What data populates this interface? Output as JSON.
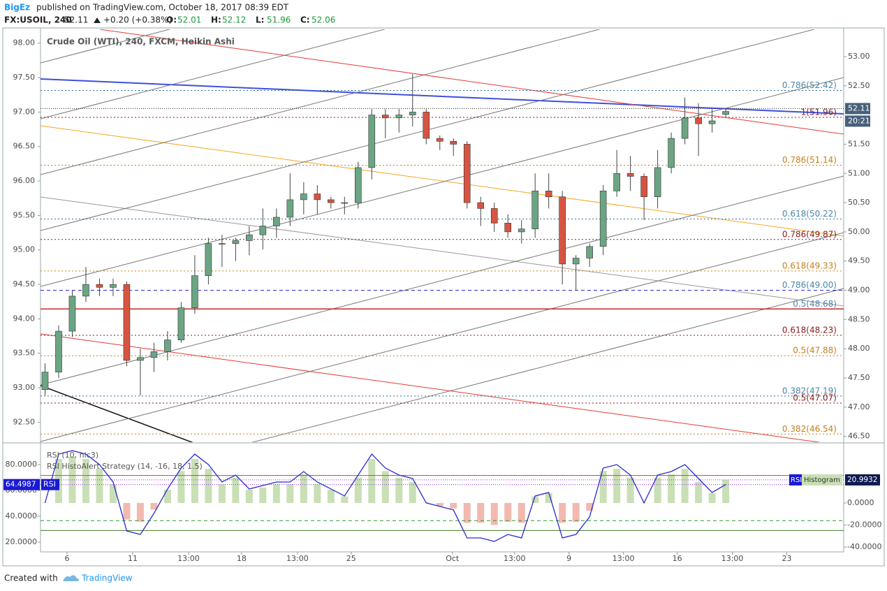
{
  "header": {
    "author": "BigEz",
    "published": "published on TradingView.com, October 18, 2017 08:39 EDT",
    "symbol": "FX:USOIL, 240",
    "last": "52.11",
    "change": "+0.20 (+0.38%)",
    "ohlc": [
      {
        "label": "O:",
        "value": "52.01"
      },
      {
        "label": "H:",
        "value": "52.12"
      },
      {
        "label": "L:",
        "value": "51.96"
      },
      {
        "label": "C:",
        "value": "52.06"
      }
    ]
  },
  "footer": {
    "text": "Created with",
    "brand": "TradingView"
  },
  "chart_data": [
    {
      "type": "candlestick",
      "title": "Crude Oil (WTI), 240, FXCM, Heikin Ashi",
      "axis": "y2",
      "up_color": "#6ba583",
      "down_color": "#d75442",
      "x": [
        1,
        4,
        7,
        10,
        13,
        16,
        19,
        22,
        25,
        28,
        31,
        34,
        37,
        40,
        43,
        46,
        49,
        52,
        55,
        58,
        61,
        64,
        67,
        70,
        73,
        76,
        79,
        82,
        85,
        88,
        91,
        94,
        97,
        100,
        103,
        106,
        109,
        112,
        115,
        118,
        121,
        124,
        127,
        130,
        133,
        136,
        139,
        142,
        145,
        148,
        151
      ],
      "open": [
        47.3,
        47.6,
        48.3,
        48.9,
        49.1,
        49.05,
        49.1,
        47.8,
        47.85,
        47.95,
        48.15,
        48.7,
        49.25,
        49.8,
        49.8,
        49.85,
        49.95,
        50.1,
        50.25,
        50.55,
        50.65,
        50.55,
        50.5,
        50.5,
        51.1,
        52.0,
        51.95,
        52.0,
        52.05,
        51.6,
        51.55,
        51.5,
        50.5,
        50.4,
        50.15,
        50.0,
        50.05,
        50.7,
        50.6,
        49.45,
        49.55,
        49.75,
        50.7,
        51.0,
        50.95,
        50.6,
        51.1,
        51.6,
        51.95,
        51.85,
        52.01
      ],
      "high": [
        47.75,
        48.4,
        49.0,
        49.4,
        49.2,
        49.2,
        49.15,
        48.0,
        48.1,
        48.3,
        48.8,
        49.6,
        49.9,
        49.95,
        49.9,
        50.1,
        50.4,
        50.4,
        51.0,
        50.85,
        50.8,
        50.6,
        50.6,
        51.2,
        52.1,
        52.1,
        52.1,
        52.7,
        52.1,
        51.65,
        51.6,
        51.55,
        50.6,
        50.5,
        50.3,
        50.2,
        51.0,
        51.0,
        50.7,
        49.6,
        49.8,
        50.8,
        51.4,
        51.3,
        51.0,
        51.4,
        51.7,
        52.3,
        52.2,
        52.1,
        52.12
      ],
      "low": [
        47.2,
        47.5,
        48.2,
        48.8,
        48.9,
        48.9,
        47.7,
        47.2,
        47.6,
        47.8,
        48.1,
        48.6,
        49.1,
        49.4,
        49.5,
        49.6,
        49.7,
        49.9,
        50.1,
        50.3,
        50.3,
        50.4,
        50.3,
        50.4,
        50.9,
        51.6,
        51.7,
        51.8,
        51.5,
        51.4,
        51.3,
        50.4,
        50.1,
        50.0,
        49.9,
        49.8,
        49.9,
        50.4,
        49.1,
        49.0,
        49.4,
        49.6,
        50.6,
        50.7,
        50.2,
        50.4,
        51.0,
        51.5,
        51.3,
        51.7,
        51.96
      ],
      "close": [
        47.6,
        48.3,
        48.9,
        49.1,
        49.05,
        49.1,
        47.8,
        47.85,
        47.95,
        48.15,
        48.7,
        49.25,
        49.8,
        49.8,
        49.85,
        49.95,
        50.1,
        50.25,
        50.55,
        50.65,
        50.55,
        50.5,
        50.5,
        51.1,
        52.0,
        51.95,
        52.0,
        52.05,
        51.6,
        51.55,
        51.5,
        50.5,
        50.4,
        50.15,
        50.0,
        50.05,
        50.7,
        50.6,
        49.45,
        49.55,
        49.75,
        50.7,
        51.0,
        50.95,
        50.6,
        51.1,
        51.6,
        51.95,
        51.85,
        51.9,
        52.06
      ],
      "xlim": [
        0,
        177
      ],
      "xticks": [
        {
          "value": 5.85,
          "label": "6"
        },
        {
          "value": 20.31,
          "label": "11"
        },
        {
          "value": 32.62,
          "label": "13:00"
        },
        {
          "value": 44.31,
          "label": "18"
        },
        {
          "value": 56.62,
          "label": "13:00"
        },
        {
          "value": 68.46,
          "label": "25"
        },
        {
          "value": 90.77,
          "label": "Oct"
        },
        {
          "value": 104.46,
          "label": "13:00"
        },
        {
          "value": 116.46,
          "label": "9"
        },
        {
          "value": 128.46,
          "label": "13:00"
        },
        {
          "value": 140.31,
          "label": "16"
        },
        {
          "value": 152.46,
          "label": "13:00"
        },
        {
          "value": 164.46,
          "label": "23"
        }
      ],
      "ylim": [
        92.21,
        98.2
      ],
      "yticks": [
        {
          "value": 98,
          "label": "98.00"
        },
        {
          "value": 97.5,
          "label": "97.50"
        },
        {
          "value": 97,
          "label": "97.00"
        },
        {
          "value": 96.5,
          "label": "96.50"
        },
        {
          "value": 96,
          "label": "96.00"
        },
        {
          "value": 95.5,
          "label": "95.50"
        },
        {
          "value": 95,
          "label": "95.00"
        },
        {
          "value": 94.5,
          "label": "94.50"
        },
        {
          "value": 94,
          "label": "94.00"
        },
        {
          "value": 93.5,
          "label": "93.50"
        },
        {
          "value": 93,
          "label": "93.00"
        },
        {
          "value": 92.5,
          "label": "92.50"
        }
      ],
      "y2lim": [
        46.4,
        53.466
      ],
      "y2ticks": [
        {
          "value": 53,
          "label": "53.00"
        },
        {
          "value": 52.5,
          "label": "52.50"
        },
        {
          "value": 51.5,
          "label": "51.50"
        },
        {
          "value": 51,
          "label": "51.00"
        },
        {
          "value": 50.5,
          "label": "50.50"
        },
        {
          "value": 50,
          "label": "50.00"
        },
        {
          "value": 49.5,
          "label": "49.50"
        },
        {
          "value": 49,
          "label": "49.00"
        },
        {
          "value": 48.5,
          "label": "48.50"
        },
        {
          "value": 48,
          "label": "48.00"
        },
        {
          "value": 47.5,
          "label": "47.50"
        },
        {
          "value": 47,
          "label": "47.00"
        },
        {
          "value": 46.5,
          "label": "46.50"
        }
      ],
      "levels": [
        {
          "label": "0.786(52.42)",
          "value": 52.42,
          "color": "#4a86a8",
          "line_color": "#2f6f9f",
          "style": "dotted"
        },
        {
          "label": "1(51.96)",
          "value": 51.96,
          "color": "#8b1a1a",
          "line_color": "#8b1a1a",
          "style": "dotted"
        },
        {
          "label": "0.786(51.14)",
          "value": 51.14,
          "color": "#c77f19",
          "line_color": "#c77f19",
          "style": "dotted"
        },
        {
          "label": "0.618(50.22)",
          "value": 50.22,
          "color": "#4a86a8",
          "line_color": "#2f6f9f",
          "style": "dotted"
        },
        {
          "label": "0.786(49.87)",
          "value": 49.87,
          "color": "#8b1a1a",
          "line_color": "#8b1a1a",
          "style": "dotted"
        },
        {
          "label": "0.618(49.33)",
          "value": 49.33,
          "color": "#c77f19",
          "line_color": "#c77f19",
          "style": "dotted"
        },
        {
          "label": "0.786(49.00)",
          "value": 49.0,
          "color": "#4a86a8",
          "line_color": "#2b2bd4",
          "style": "dashed"
        },
        {
          "label": "0.5(48.68)",
          "value": 48.68,
          "color": "#4a86a8",
          "line_color": "#c62828",
          "style": "solid"
        },
        {
          "label": "0.618(48.23)",
          "value": 48.23,
          "color": "#8b1a1a",
          "line_color": "#8b1a1a",
          "style": "dotted"
        },
        {
          "label": "0.5(47.88)",
          "value": 47.88,
          "color": "#c77f19",
          "line_color": "#c77f19",
          "style": "dotted"
        },
        {
          "label": "0.382(47.19)",
          "value": 47.19,
          "color": "#4a86a8",
          "line_color": "#2f6f9f",
          "style": "dotted"
        },
        {
          "label": "0.5(47.07)",
          "value": 47.07,
          "color": "#8b1a1a",
          "line_color": "#8b1a1a",
          "style": "dotted"
        },
        {
          "label": "0.382(46.54)",
          "value": 46.54,
          "color": "#c77f19",
          "line_color": "#c77f19",
          "style": "dotted"
        }
      ],
      "price_tag": {
        "label": "52.11",
        "value": 52.11,
        "color": "#48607a",
        "time": "20:21"
      }
    },
    {
      "type": "rsi",
      "title": "RSI (10, hlc3)",
      "subtitle": "RSI HistoAlert Strategy (14, -16, 18, 1.5)",
      "series": [
        {
          "name": "RSI",
          "color": "#2a2ad0",
          "values": [
            50.3,
            88.1,
            90.8,
            88.1,
            80,
            66.5,
            28.6,
            25.9,
            42.2,
            61.1,
            77.3,
            88.1,
            80,
            66.5,
            71.9,
            61.1,
            63.8,
            66.5,
            66.5,
            74.6,
            66.5,
            61.1,
            55.7,
            71.9,
            88.1,
            77.3,
            71.9,
            69.2,
            50.3,
            47.6,
            44.9,
            23.2,
            23.2,
            20.5,
            25.9,
            23.2,
            55.7,
            58.4,
            23.2,
            25.9,
            39.5,
            77.3,
            80,
            71.9,
            50.3,
            71.9,
            74.6,
            80,
            69.2,
            58.4,
            64.4987
          ]
        },
        {
          "name": "Histogram",
          "axis": "y2",
          "color": "#c9dfb5",
          "negative_color": "#f2b9b0",
          "values": [
            0.3,
            40,
            42,
            40,
            31,
            17,
            -15,
            -17,
            -6,
            12,
            29,
            40,
            31,
            17,
            23,
            12,
            14,
            17,
            17,
            26,
            17,
            12,
            6,
            23,
            40,
            29,
            23,
            19,
            0.3,
            -3,
            -5,
            -18,
            -18,
            -20,
            -17,
            -18,
            6,
            9,
            -18,
            -17,
            -7,
            29,
            31,
            23,
            0.3,
            23,
            26,
            31,
            19,
            9,
            20.9932
          ]
        }
      ],
      "ylim": [
        12.4,
        95.7
      ],
      "yticks": [
        {
          "value": 80,
          "label": "80.0000"
        },
        {
          "value": 60,
          "label": "60.0000"
        },
        {
          "value": 40,
          "label": "40.0000"
        },
        {
          "value": 20,
          "label": "20.0000"
        }
      ],
      "y2lim": [
        -44.4,
        53.3
      ],
      "y2ticks": [
        {
          "value": 0,
          "label": "0.0000"
        },
        {
          "value": -20,
          "label": "-20.0000"
        },
        {
          "value": -40,
          "label": "-40.0000"
        }
      ],
      "levels": [
        {
          "value": 25,
          "axis": "y2",
          "color": "#e53935",
          "style": "solid"
        },
        {
          "value": -16,
          "axis": "y2",
          "color": "#2e9a2e",
          "style": "dashed"
        },
        {
          "value": -25,
          "axis": "y2",
          "color": "#3d7a2a",
          "style": "solid"
        }
      ],
      "tags": [
        {
          "label": "64.4987",
          "value": 64.4987,
          "axis": "y",
          "name": "RSI",
          "color": "#1a1ad6"
        },
        {
          "label": "20.9932",
          "value": 20.9932,
          "axis": "y2",
          "name": "RSI",
          "name2": "Histogram",
          "color": "#0d1b4f"
        }
      ]
    }
  ]
}
